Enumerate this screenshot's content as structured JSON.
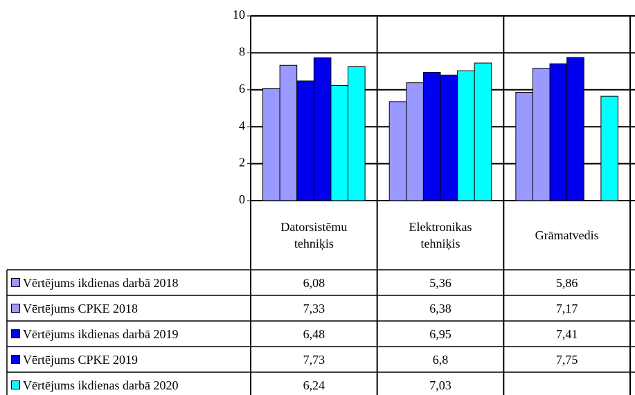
{
  "chart_data": {
    "type": "bar",
    "categories": [
      "Datorsistēmu tehniķis",
      "Elektronikas tehniķis",
      "Grāmatvedis"
    ],
    "series": [
      {
        "name": "Vērtējums ikdienas darbā 2018",
        "color": "#9999ff",
        "values": [
          6.08,
          5.36,
          5.86
        ],
        "value_labels": [
          "6,08",
          "5,36",
          "5,86"
        ]
      },
      {
        "name": "Vērtējums CPKE 2018",
        "color": "#9999ff",
        "values": [
          7.33,
          6.38,
          7.17
        ],
        "value_labels": [
          "7,33",
          "6,38",
          "7,17"
        ]
      },
      {
        "name": "Vērtējums ikdienas darbā 2019",
        "color": "#0000ee",
        "values": [
          6.48,
          6.95,
          7.41
        ],
        "value_labels": [
          "6,48",
          "6,95",
          "7,41"
        ]
      },
      {
        "name": "Vērtējums CPKE 2019",
        "color": "#0000ee",
        "values": [
          7.73,
          6.8,
          7.75
        ],
        "value_labels": [
          "7,73",
          "6,8",
          "7,75"
        ]
      },
      {
        "name": "Vērtējums ikdienas darbā 2020",
        "color": "#00ffff",
        "values": [
          6.24,
          7.03,
          null
        ],
        "value_labels": [
          "6,24",
          "7,03",
          null
        ]
      },
      {
        "color": "#00ffff",
        "values": [
          7.25,
          7.45,
          5.65
        ]
      }
    ],
    "ylim": [
      0,
      10
    ],
    "yticks": [
      0,
      2,
      4,
      6,
      8,
      10
    ],
    "grid": true
  }
}
